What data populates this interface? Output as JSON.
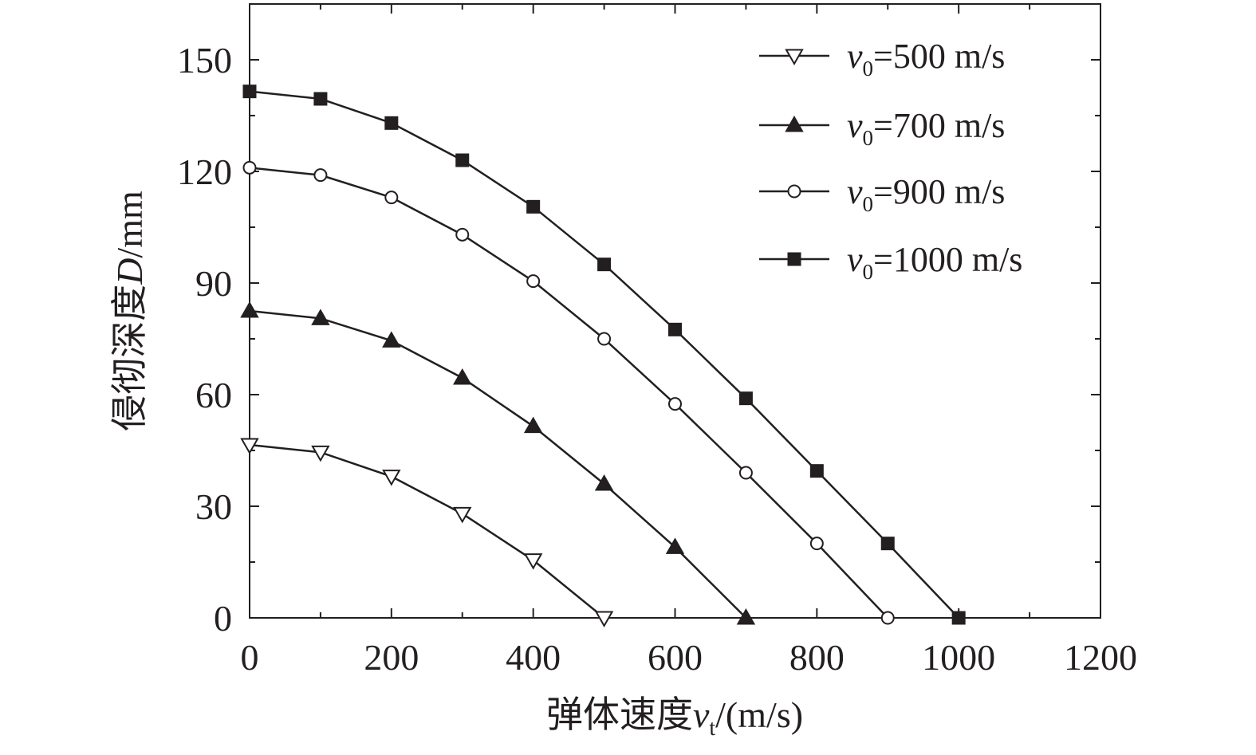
{
  "chart_data": {
    "type": "line",
    "xlabel": {
      "prefix": "弹体速度",
      "var": "v",
      "sub": "t",
      "suffix": "/(m/s)"
    },
    "ylabel": {
      "prefix": "侵彻深度",
      "var": "D",
      "suffix": "/mm"
    },
    "xlim": [
      0,
      1200
    ],
    "ylim": [
      0,
      165
    ],
    "xticks": [
      0,
      200,
      400,
      600,
      800,
      1000,
      1200
    ],
    "yticks": [
      0,
      30,
      60,
      90,
      120,
      150
    ],
    "legend_position": "top-right",
    "grid": false,
    "colors": {
      "line": "#231f20",
      "axis": "#231f20"
    },
    "series": [
      {
        "name": "v0=500 m/s",
        "label": {
          "var": "v",
          "sub": "0",
          "rest": "=500 m/s"
        },
        "marker": "triangle-down-open",
        "x": [
          0,
          100,
          200,
          300,
          400,
          500
        ],
        "y": [
          46.5,
          44.5,
          38,
          28,
          15.5,
          0
        ]
      },
      {
        "name": "v0=700 m/s",
        "label": {
          "var": "v",
          "sub": "0",
          "rest": "=700 m/s"
        },
        "marker": "triangle-up-filled",
        "x": [
          0,
          100,
          200,
          300,
          400,
          500,
          600,
          700
        ],
        "y": [
          82.5,
          80.5,
          74.5,
          64.5,
          51.5,
          36,
          19,
          0
        ]
      },
      {
        "name": "v0=900 m/s",
        "label": {
          "var": "v",
          "sub": "0",
          "rest": "=900 m/s"
        },
        "marker": "circle-open",
        "x": [
          0,
          100,
          200,
          300,
          400,
          500,
          600,
          700,
          800,
          900
        ],
        "y": [
          121,
          119,
          113,
          103,
          90.5,
          75,
          57.5,
          39,
          20,
          0
        ]
      },
      {
        "name": "v0=1000 m/s",
        "label": {
          "var": "v",
          "sub": "0",
          "rest": "=1000 m/s"
        },
        "marker": "square-filled",
        "x": [
          0,
          100,
          200,
          300,
          400,
          500,
          600,
          700,
          800,
          900,
          1000
        ],
        "y": [
          141.5,
          139.5,
          133,
          123,
          110.5,
          95,
          77.5,
          59,
          39.5,
          20,
          0
        ]
      }
    ]
  }
}
